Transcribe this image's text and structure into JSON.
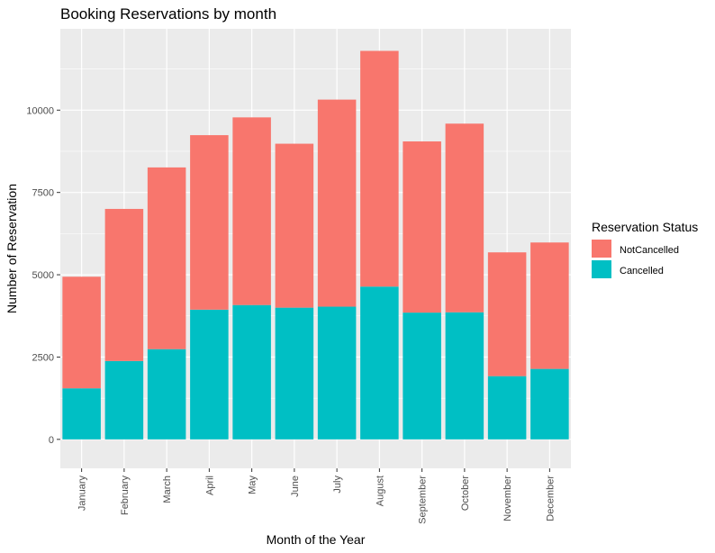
{
  "chart_data": {
    "type": "bar",
    "stacked": true,
    "title": "Booking Reservations by month",
    "xlabel": "Month of the Year",
    "ylabel": "Number of Reservation",
    "categories": [
      "January",
      "February",
      "March",
      "April",
      "May",
      "June",
      "July",
      "August",
      "September",
      "October",
      "November",
      "December"
    ],
    "series": [
      {
        "name": "Cancelled",
        "color": "#00BFC4",
        "values": [
          1550,
          2380,
          2740,
          3940,
          4080,
          4000,
          4030,
          4640,
          3850,
          3860,
          1920,
          2140
        ]
      },
      {
        "name": "NotCancelled",
        "color": "#F8766D",
        "values": [
          3390,
          4620,
          5520,
          5300,
          5700,
          4980,
          6290,
          7160,
          5200,
          5730,
          3760,
          3840
        ]
      }
    ],
    "ylim": [
      -880,
      12470
    ],
    "yticks": [
      0,
      2500,
      5000,
      7500,
      10000
    ],
    "ytick_labels": [
      "0",
      "2500",
      "5000",
      "7500",
      "10000"
    ],
    "grid": true,
    "legend": {
      "title": "Reservation Status",
      "position": "right",
      "entries": [
        {
          "label": "NotCancelled",
          "color": "#F8766D"
        },
        {
          "label": "Cancelled",
          "color": "#00BFC4"
        }
      ]
    },
    "panel_color": "#EBEBEB",
    "grid_color": "#FFFFFF"
  }
}
